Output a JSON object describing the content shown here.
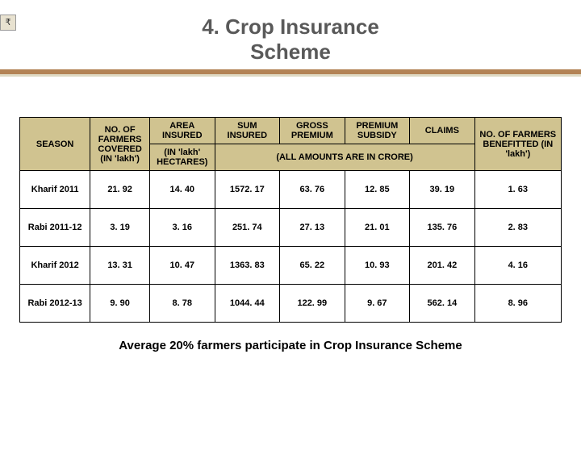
{
  "rupee": "₹",
  "title_line1": "4. Crop Insurance",
  "title_line2": "Scheme",
  "colors": {
    "accent_bar": "#b38356",
    "accent_under": "#ded9c3",
    "header_bg": "#d0c390",
    "cell_bg": "#ffffff",
    "border": "#000000",
    "title_color": "#595959"
  },
  "headers": {
    "season": "SEASON",
    "farmers": "NO. OF FARMERS COVERED (IN 'lakh')",
    "area_top": "AREA INSURED",
    "area_sub": "(IN 'lakh' HECTARES)",
    "sum": "SUM INSURED",
    "gross": "GROSS PREMIUM",
    "subsidy": "PREMIUM SUBSIDY",
    "claims": "CLAIMS",
    "benefitted": "NO. OF FARMERS BENEFITTED (IN 'lakh')",
    "crore_note": "(ALL AMOUNTS ARE IN CRORE)"
  },
  "rows": [
    {
      "season": "Kharif 2011",
      "farmers": "21. 92",
      "area": "14. 40",
      "sum": "1572. 17",
      "gross": "63. 76",
      "subsidy": "12. 85",
      "claims": "39. 19",
      "benef": "1. 63"
    },
    {
      "season": "Rabi 2011-12",
      "farmers": "3. 19",
      "area": "3. 16",
      "sum": "251. 74",
      "gross": "27. 13",
      "subsidy": "21. 01",
      "claims": "135. 76",
      "benef": "2. 83"
    },
    {
      "season": "Kharif 2012",
      "farmers": "13. 31",
      "area": "10. 47",
      "sum": "1363. 83",
      "gross": "65. 22",
      "subsidy": "10. 93",
      "claims": "201. 42",
      "benef": "4. 16"
    },
    {
      "season": "Rabi 2012-13",
      "farmers": "9. 90",
      "area": "8. 78",
      "sum": "1044. 44",
      "gross": "122. 99",
      "subsidy": "9. 67",
      "claims": "562. 14",
      "benef": "8. 96"
    }
  ],
  "footer": "Average 20% farmers participate in Crop Insurance Scheme"
}
